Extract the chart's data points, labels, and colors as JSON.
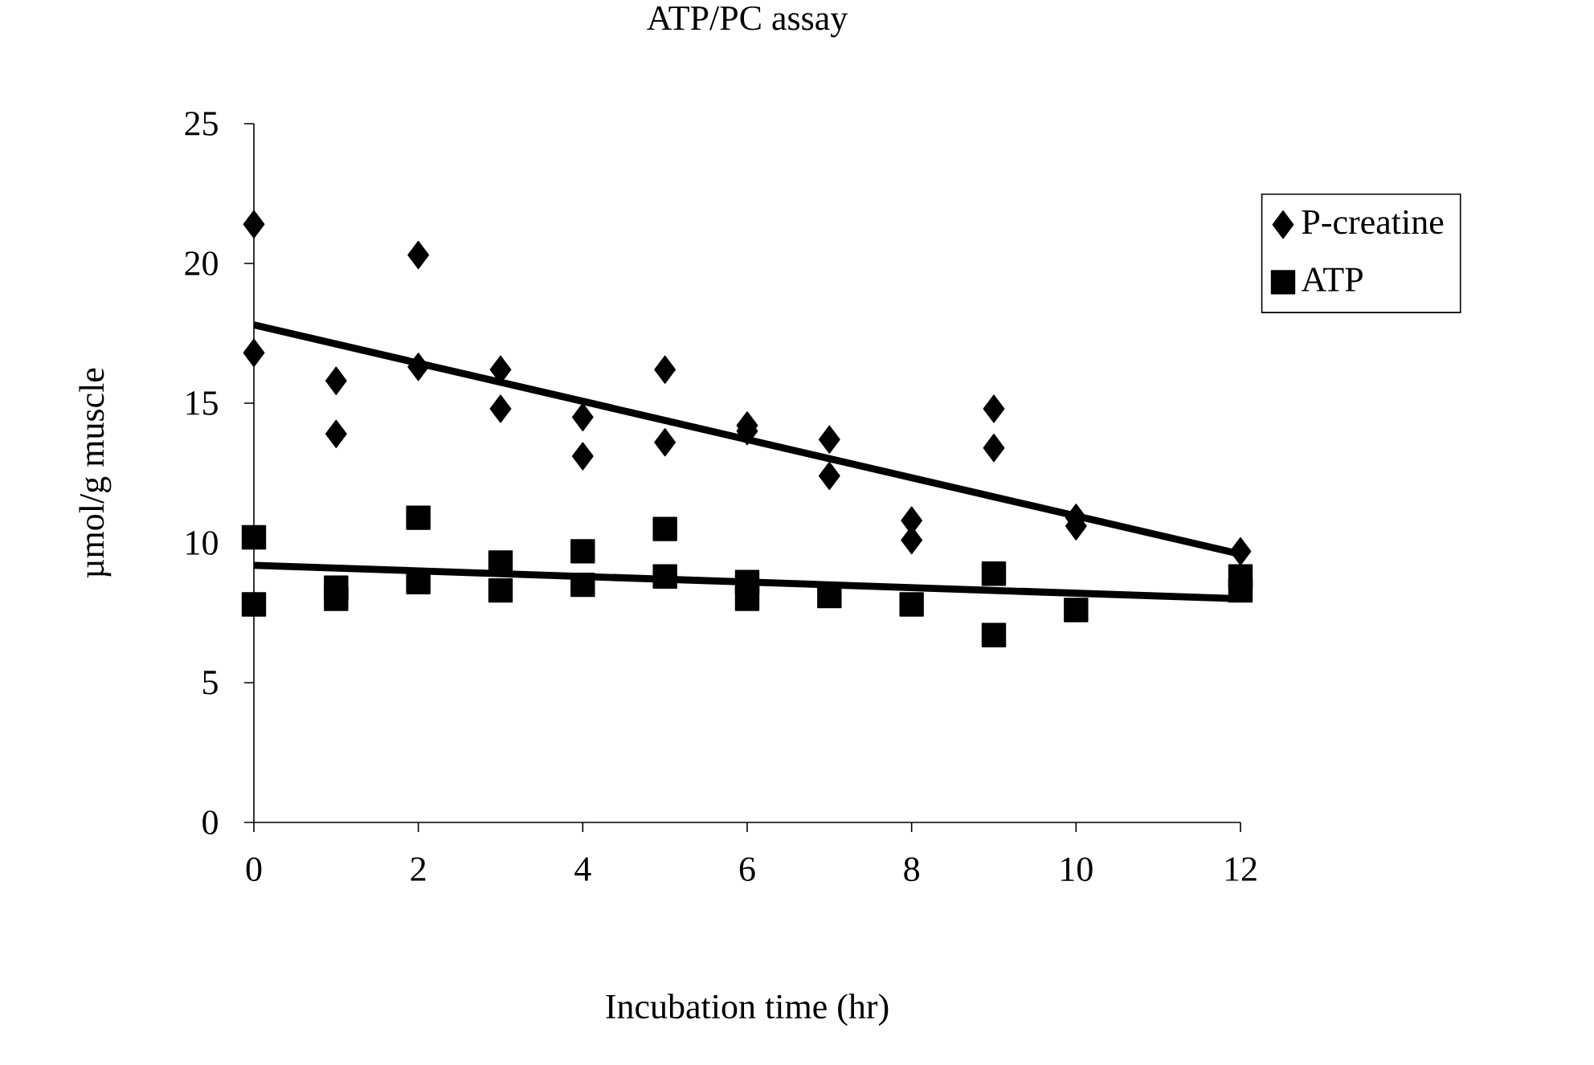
{
  "chart_data": {
    "type": "scatter",
    "title": "ATP/PC assay",
    "xlabel": "Incubation time (hr)",
    "ylabel": "µmol/g muscle",
    "xlim": [
      0,
      12
    ],
    "ylim": [
      0,
      25
    ],
    "xticks": [
      0,
      2,
      4,
      6,
      8,
      10,
      12
    ],
    "yticks": [
      0,
      5,
      10,
      15,
      20,
      25
    ],
    "grid": false,
    "legend": "top right",
    "series": [
      {
        "name": "P-creatine",
        "color": "#000000",
        "marker": "diamond",
        "x": [
          0,
          0,
          1,
          1,
          2,
          2,
          3,
          3,
          4,
          4,
          5,
          5,
          6,
          6,
          7,
          7,
          8,
          8,
          9,
          9,
          10,
          10,
          12
        ],
        "values": [
          21.4,
          16.8,
          15.8,
          13.9,
          20.3,
          16.3,
          16.2,
          14.8,
          14.5,
          13.1,
          16.2,
          13.6,
          14.2,
          14.0,
          13.7,
          12.4,
          10.8,
          10.1,
          14.8,
          13.4,
          10.9,
          10.6,
          9.7
        ]
      },
      {
        "name": "ATP",
        "color": "#000000",
        "marker": "square",
        "x": [
          0,
          0,
          1,
          1,
          2,
          2,
          3,
          3,
          4,
          4,
          5,
          5,
          6,
          6,
          7,
          8,
          9,
          9,
          10,
          12,
          12
        ],
        "values": [
          10.2,
          7.8,
          8.4,
          8.0,
          10.9,
          8.6,
          9.3,
          8.3,
          9.7,
          8.5,
          10.5,
          8.8,
          8.6,
          8.0,
          8.1,
          7.8,
          8.9,
          6.7,
          7.6,
          8.8,
          8.3
        ]
      },
      {
        "type": "line",
        "color": "#000000",
        "marker": "none",
        "x": [
          0,
          12
        ],
        "values": [
          17.8,
          9.6
        ]
      },
      {
        "type": "line",
        "color": "#000000",
        "marker": "none",
        "x": [
          0,
          12
        ],
        "values": [
          9.2,
          8.0
        ]
      }
    ]
  }
}
